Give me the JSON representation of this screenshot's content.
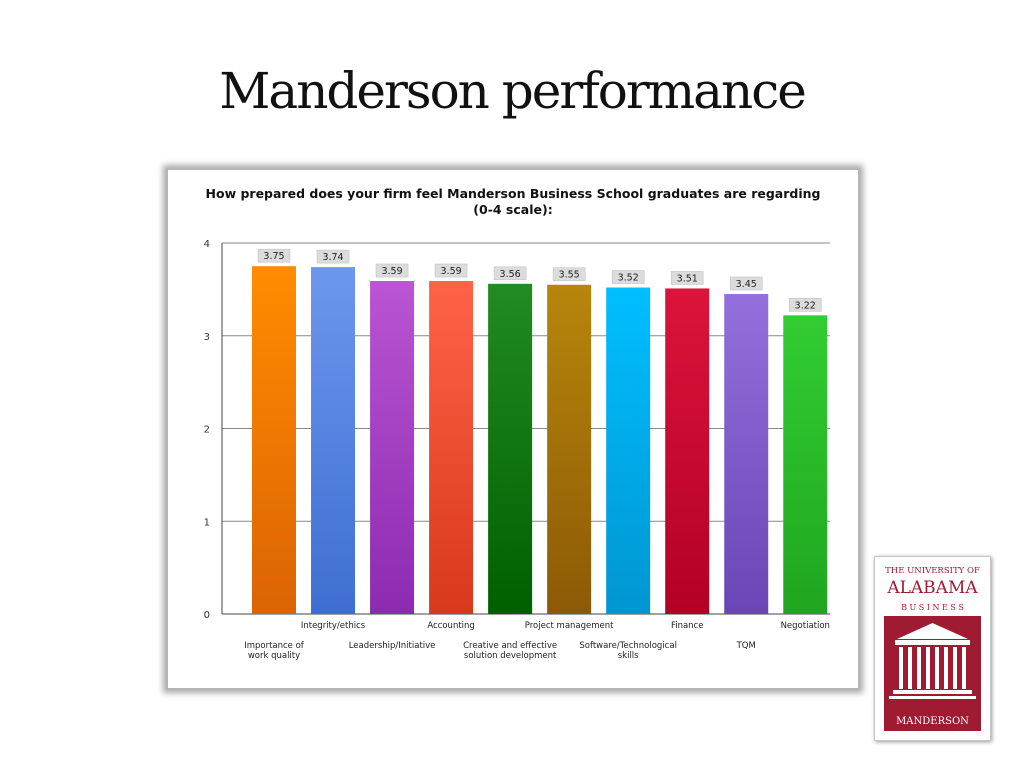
{
  "slide": {
    "title": "Manderson performance"
  },
  "chart_data": {
    "type": "bar",
    "title_line1": "How prepared does your firm feel Manderson Business School graduates are regarding",
    "title_line2": "(0-4 scale):",
    "categories": [
      [
        "Importance of",
        "work quality"
      ],
      [
        "Integrity/ethics"
      ],
      [
        "Leadership/Initiative"
      ],
      [
        "Accounting"
      ],
      [
        "Creative and effective",
        "solution development"
      ],
      [
        "Project management"
      ],
      [
        "Software/Technological",
        "skills"
      ],
      [
        "Finance"
      ],
      [
        "TQM"
      ],
      [
        "Negotiation"
      ]
    ],
    "values": [
      3.75,
      3.74,
      3.59,
      3.59,
      3.56,
      3.55,
      3.52,
      3.51,
      3.45,
      3.22
    ],
    "value_labels": [
      "3.75",
      "3.74",
      "3.59",
      "3.59",
      "3.56",
      "3.55",
      "3.52",
      "3.51",
      "3.45",
      "3.22"
    ],
    "ylim": [
      0,
      4
    ],
    "yticks": [
      "0",
      "1",
      "2",
      "3",
      "4"
    ],
    "grid": true,
    "legend": "none",
    "colors": [
      [
        "#ff8c00",
        "#dc6304"
      ],
      [
        "#6c97ee",
        "#3f6ed2"
      ],
      [
        "#ba55d3",
        "#8b2bb0"
      ],
      [
        "#ff6347",
        "#d8381c"
      ],
      [
        "#228b22",
        "#005f00"
      ],
      [
        "#b8860b",
        "#8c5a06"
      ],
      [
        "#00bfff",
        "#0096d2"
      ],
      [
        "#dc143c",
        "#b30024"
      ],
      [
        "#9370db",
        "#6a46b6"
      ],
      [
        "#32cd32",
        "#1fa61f"
      ]
    ]
  },
  "logo": {
    "line1": "THE UNIVERSITY OF",
    "line2": "ALABAMA",
    "line3": "B U S I N E S S",
    "line4": "MANDERSON",
    "brand_color": "#9e1b32"
  }
}
